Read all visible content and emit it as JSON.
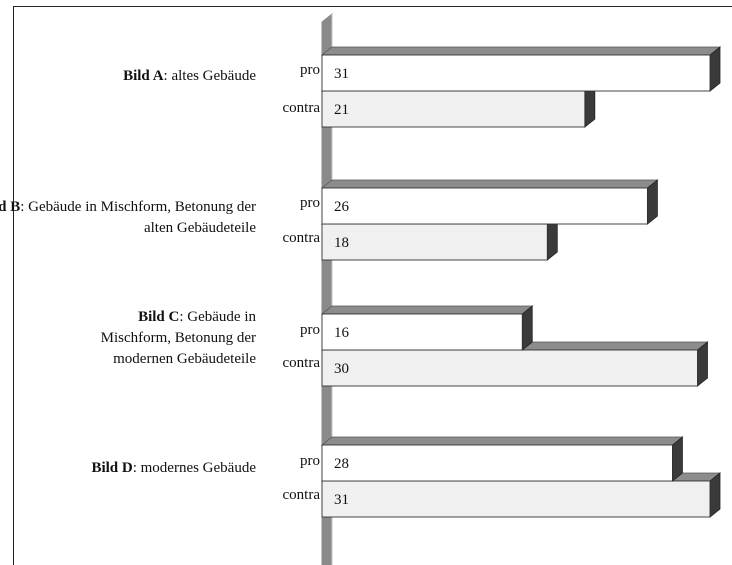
{
  "chart_data": {
    "type": "bar",
    "orientation": "horizontal",
    "style": "3d",
    "categories": [
      {
        "bold": "Bild A",
        "rest": ": altes Gebäude"
      },
      {
        "bold": "Bild B",
        "rest": ": Gebäude in Mischform, Betonung der alten Gebäudeteile"
      },
      {
        "bold": "Bild C",
        "rest": ": Gebäude in Mischform, Betonung der modernen Gebäudeteile"
      },
      {
        "bold": "Bild D",
        "rest": ": modernes Gebäude"
      }
    ],
    "series": [
      {
        "name": "pro",
        "values": [
          31,
          26,
          16,
          28
        ]
      },
      {
        "name": "contra",
        "values": [
          21,
          18,
          30,
          31
        ]
      }
    ],
    "xlim": [
      0,
      31
    ],
    "data_labels": true,
    "legend": "none",
    "grid": false,
    "colors": {
      "pro_face": "#ffffff",
      "contra_face": "#f0f0f0",
      "bar_top": "#8c8c8c",
      "bar_side": "#3a3a3a",
      "wall_face": "#8a8a8a",
      "wall_edge": "#c4c4c4"
    }
  }
}
